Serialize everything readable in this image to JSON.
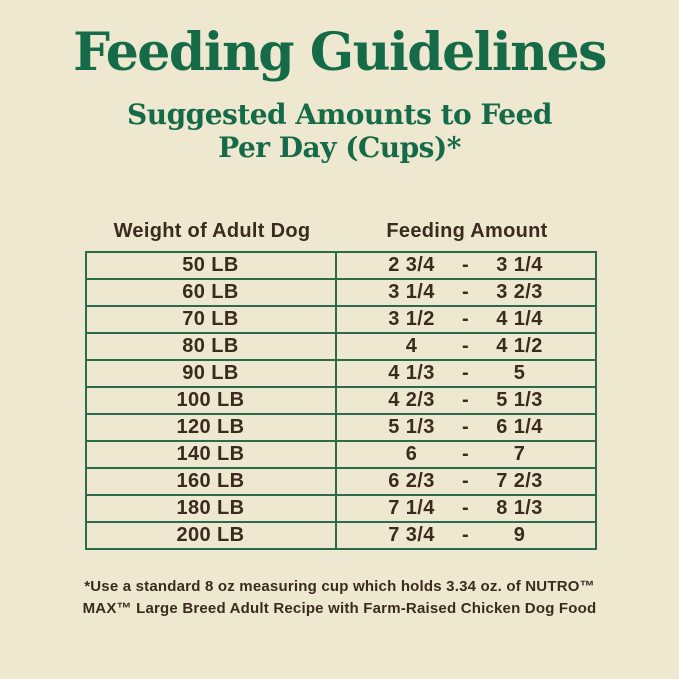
{
  "page": {
    "background_color": "#EFE8D1",
    "title_color": "#156B47",
    "border_color": "#2B6B4C",
    "text_color": "#3B2B1E",
    "title": "Feeding Guidelines",
    "subtitle_line1": "Suggested Amounts to Feed",
    "subtitle_line2": "Per Day (Cups)*"
  },
  "table": {
    "headers": [
      "Weight of Adult Dog",
      "Feeding Amount"
    ],
    "separator": "-",
    "rows": [
      {
        "weight": "50 LB",
        "low": "2 3/4",
        "high": "3 1/4"
      },
      {
        "weight": "60 LB",
        "low": "3 1/4",
        "high": "3 2/3"
      },
      {
        "weight": "70 LB",
        "low": "3 1/2",
        "high": "4 1/4"
      },
      {
        "weight": "80 LB",
        "low": "4",
        "high": "4 1/2"
      },
      {
        "weight": "90 LB",
        "low": "4 1/3",
        "high": "5"
      },
      {
        "weight": "100 LB",
        "low": "4 2/3",
        "high": "5 1/3"
      },
      {
        "weight": "120 LB",
        "low": "5 1/3",
        "high": "6 1/4"
      },
      {
        "weight": "140 LB",
        "low": "6",
        "high": "7"
      },
      {
        "weight": "160 LB",
        "low": "6 2/3",
        "high": "7 2/3"
      },
      {
        "weight": "180 LB",
        "low": "7 1/4",
        "high": "8 1/3"
      },
      {
        "weight": "200 LB",
        "low": "7 3/4",
        "high": "9"
      }
    ]
  },
  "footnote": {
    "line1": "*Use a standard 8 oz measuring cup which holds 3.34 oz. of NUTRO™",
    "line2": "MAX™ Large Breed Adult Recipe with Farm-Raised Chicken Dog Food"
  }
}
